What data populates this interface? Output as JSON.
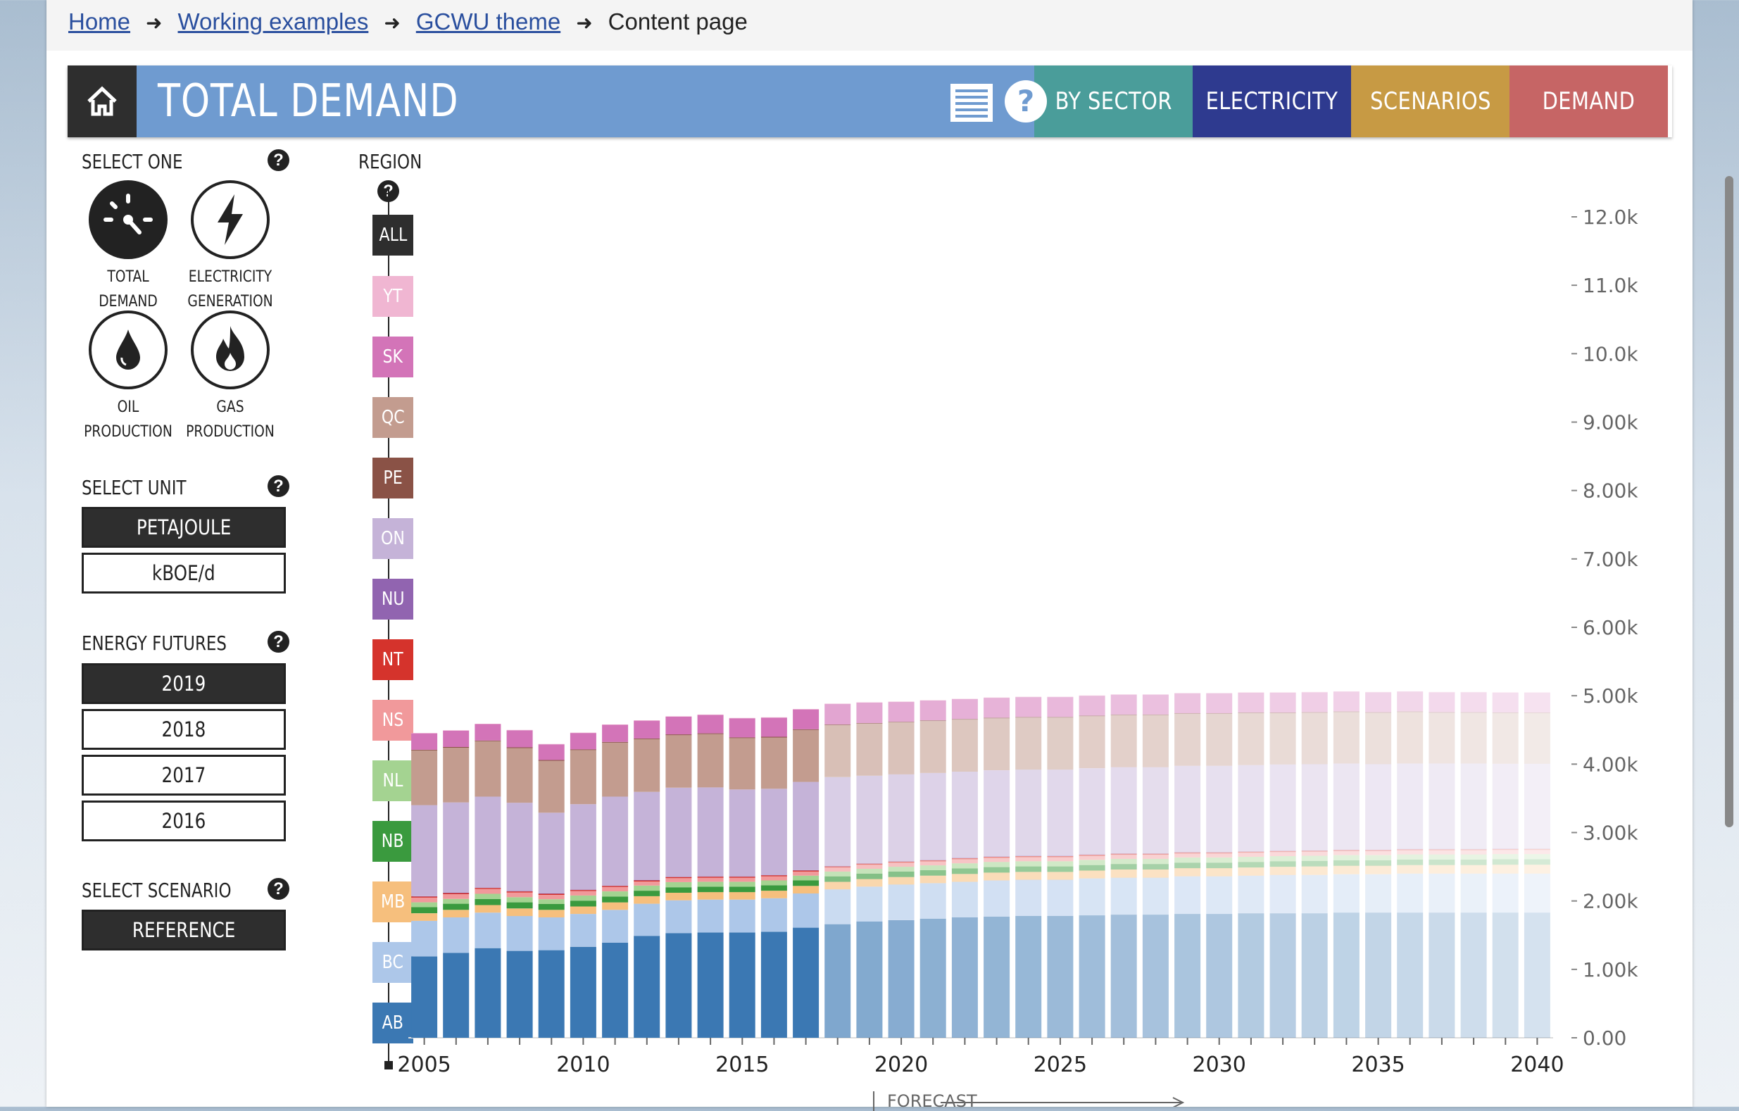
{
  "breadcrumb": {
    "items": [
      "Home",
      "Working examples",
      "GCWU theme"
    ],
    "current": "Content page"
  },
  "header": {
    "title": "TOTAL DEMAND",
    "tabs": [
      {
        "label": "BY SECTOR",
        "color": "#4a9d9a"
      },
      {
        "label": "ELECTRICITY",
        "color": "#2e3a8f"
      },
      {
        "label": "SCENARIOS",
        "color": "#c79a44"
      },
      {
        "label": "DEMAND",
        "color": "#c66565"
      }
    ],
    "icons": [
      "home-icon",
      "list-icon",
      "help-icon"
    ]
  },
  "sidebar": {
    "select_one_label": "SELECT ONE",
    "modes": [
      {
        "label1": "TOTAL DEMAND",
        "label2": "",
        "icon": "gauge-icon",
        "selected": true
      },
      {
        "label1": "ELECTRICITY",
        "label2": "GENERATION",
        "icon": "lightning-icon",
        "selected": false
      },
      {
        "label1": "OIL",
        "label2": "PRODUCTION",
        "icon": "oil-drop-icon",
        "selected": false
      },
      {
        "label1": "GAS",
        "label2": "PRODUCTION",
        "icon": "flame-icon",
        "selected": false
      }
    ],
    "unit_label": "SELECT UNIT",
    "units": [
      "PETAJOULE",
      "kBOE/d"
    ],
    "unit_selected": "PETAJOULE",
    "futures_label": "ENERGY FUTURES",
    "futures": [
      "2019",
      "2018",
      "2017",
      "2016"
    ],
    "future_selected": "2019",
    "scenario_label": "SELECT SCENARIO",
    "scenario": "REFERENCE"
  },
  "regions": {
    "label": "REGION",
    "items": [
      {
        "code": "ALL",
        "color": "#2e2e2e"
      },
      {
        "code": "YT",
        "color": "#f0b6d2"
      },
      {
        "code": "SK",
        "color": "#d374b8"
      },
      {
        "code": "QC",
        "color": "#c39c8f"
      },
      {
        "code": "PE",
        "color": "#8a5246"
      },
      {
        "code": "ON",
        "color": "#c5b3d8"
      },
      {
        "code": "NU",
        "color": "#9164b0"
      },
      {
        "code": "NT",
        "color": "#d5332c"
      },
      {
        "code": "NS",
        "color": "#f1999b"
      },
      {
        "code": "NL",
        "color": "#a4d391"
      },
      {
        "code": "NB",
        "color": "#3a9a3e"
      },
      {
        "code": "MB",
        "color": "#f6bf7d"
      },
      {
        "code": "BC",
        "color": "#adc7e9"
      },
      {
        "code": "AB",
        "color": "#3b78b3"
      }
    ]
  },
  "chart_data": {
    "type": "bar",
    "stacked": true,
    "forecast_label": "FORECAST",
    "forecast_start": 2018,
    "x": [
      2005,
      2006,
      2007,
      2008,
      2009,
      2010,
      2011,
      2012,
      2013,
      2014,
      2015,
      2016,
      2017,
      2018,
      2019,
      2020,
      2021,
      2022,
      2023,
      2024,
      2025,
      2026,
      2027,
      2028,
      2029,
      2030,
      2031,
      2032,
      2033,
      2034,
      2035,
      2036,
      2037,
      2038,
      2039,
      2040
    ],
    "x_ticks": [
      "2005",
      "2010",
      "2015",
      "2020",
      "2025",
      "2030",
      "2035",
      "2040"
    ],
    "y_ticks": [
      "0.00",
      "1.00k",
      "2.00k",
      "3.00k",
      "4.00k",
      "5.00k",
      "6.00k",
      "7.00k",
      "8.00k",
      "9.00k",
      "10.0k",
      "11.0k",
      "12.0k"
    ],
    "ylim": [
      0,
      12000
    ],
    "series": [
      {
        "name": "AB",
        "color": "#3b78b3",
        "values": [
          1190,
          1240,
          1310,
          1270,
          1280,
          1330,
          1390,
          1490,
          1530,
          1540,
          1540,
          1550,
          1610,
          1660,
          1700,
          1720,
          1740,
          1760,
          1770,
          1780,
          1780,
          1790,
          1800,
          1800,
          1810,
          1810,
          1820,
          1820,
          1820,
          1830,
          1830,
          1830,
          1830,
          1830,
          1830,
          1830
        ]
      },
      {
        "name": "BC",
        "color": "#adc7e9",
        "values": [
          520,
          520,
          520,
          510,
          480,
          480,
          480,
          470,
          480,
          480,
          480,
          490,
          500,
          510,
          510,
          520,
          520,
          520,
          530,
          530,
          530,
          540,
          540,
          540,
          550,
          550,
          550,
          560,
          560,
          560,
          560,
          570,
          570,
          570,
          570,
          570
        ]
      },
      {
        "name": "MB",
        "color": "#f6bf7d",
        "values": [
          110,
          110,
          110,
          110,
          110,
          110,
          110,
          110,
          110,
          110,
          110,
          110,
          110,
          110,
          110,
          110,
          110,
          115,
          115,
          115,
          115,
          115,
          120,
          120,
          120,
          120,
          120,
          120,
          125,
          125,
          125,
          125,
          125,
          125,
          130,
          130
        ]
      },
      {
        "name": "NB",
        "color": "#3a9a3e",
        "values": [
          90,
          90,
          90,
          90,
          85,
          85,
          85,
          80,
          80,
          80,
          80,
          80,
          80,
          80,
          80,
          80,
          80,
          80,
          80,
          80,
          80,
          80,
          80,
          80,
          80,
          80,
          80,
          80,
          80,
          80,
          80,
          80,
          80,
          80,
          80,
          80
        ]
      },
      {
        "name": "NL",
        "color": "#a4d391",
        "values": [
          70,
          70,
          75,
          75,
          70,
          75,
          75,
          75,
          75,
          70,
          70,
          70,
          70,
          70,
          70,
          70,
          70,
          75,
          75,
          75,
          75,
          75,
          75,
          75,
          75,
          75,
          75,
          75,
          75,
          75,
          75,
          75,
          75,
          75,
          75,
          75
        ]
      },
      {
        "name": "NS",
        "color": "#f1999b",
        "values": [
          70,
          70,
          70,
          70,
          65,
          65,
          65,
          60,
          60,
          60,
          60,
          60,
          60,
          60,
          60,
          60,
          60,
          60,
          60,
          60,
          60,
          60,
          60,
          60,
          60,
          60,
          60,
          60,
          60,
          60,
          60,
          60,
          60,
          60,
          60,
          60
        ]
      },
      {
        "name": "NT",
        "color": "#d5332c",
        "values": [
          15,
          15,
          15,
          15,
          15,
          15,
          15,
          15,
          15,
          15,
          15,
          15,
          15,
          15,
          15,
          15,
          15,
          15,
          15,
          15,
          15,
          15,
          15,
          15,
          15,
          15,
          15,
          15,
          15,
          15,
          15,
          15,
          15,
          15,
          15,
          15
        ]
      },
      {
        "name": "NU",
        "color": "#9164b0",
        "values": [
          5,
          5,
          5,
          5,
          5,
          5,
          5,
          5,
          5,
          5,
          5,
          5,
          5,
          5,
          5,
          5,
          5,
          5,
          5,
          5,
          5,
          5,
          5,
          5,
          5,
          5,
          5,
          5,
          5,
          5,
          5,
          5,
          5,
          5,
          5,
          5
        ]
      },
      {
        "name": "ON",
        "color": "#c5b3d8",
        "values": [
          1330,
          1320,
          1330,
          1290,
          1180,
          1250,
          1300,
          1290,
          1300,
          1300,
          1270,
          1260,
          1290,
          1300,
          1280,
          1270,
          1270,
          1260,
          1260,
          1260,
          1260,
          1260,
          1260,
          1260,
          1260,
          1260,
          1260,
          1260,
          1260,
          1260,
          1250,
          1250,
          1250,
          1250,
          1240,
          1240
        ]
      },
      {
        "name": "QC",
        "color": "#c39c8f",
        "values": [
          800,
          800,
          810,
          800,
          760,
          790,
          790,
          770,
          770,
          780,
          750,
          750,
          760,
          760,
          760,
          760,
          760,
          760,
          760,
          760,
          760,
          760,
          760,
          760,
          760,
          760,
          760,
          750,
          750,
          750,
          750,
          750,
          740,
          740,
          740,
          740
        ]
      },
      {
        "name": "PE",
        "color": "#8a5246",
        "values": [
          10,
          10,
          10,
          10,
          10,
          10,
          10,
          10,
          10,
          10,
          10,
          10,
          10,
          10,
          10,
          10,
          10,
          10,
          10,
          10,
          10,
          10,
          10,
          10,
          10,
          10,
          10,
          10,
          10,
          10,
          10,
          10,
          10,
          10,
          10,
          10
        ]
      },
      {
        "name": "SK",
        "color": "#d374b8",
        "values": [
          240,
          240,
          240,
          250,
          230,
          240,
          250,
          260,
          260,
          270,
          280,
          280,
          290,
          300,
          300,
          290,
          290,
          290,
          290,
          290,
          290,
          290,
          290,
          290,
          290,
          290,
          290,
          290,
          290,
          290,
          290,
          290,
          290,
          290,
          290,
          290
        ]
      },
      {
        "name": "YT",
        "color": "#f0b6d2",
        "values": [
          5,
          5,
          5,
          5,
          5,
          5,
          5,
          5,
          5,
          5,
          5,
          5,
          5,
          5,
          5,
          5,
          5,
          5,
          5,
          5,
          5,
          5,
          5,
          5,
          5,
          5,
          5,
          5,
          5,
          5,
          5,
          5,
          5,
          5,
          5,
          5
        ]
      }
    ]
  }
}
